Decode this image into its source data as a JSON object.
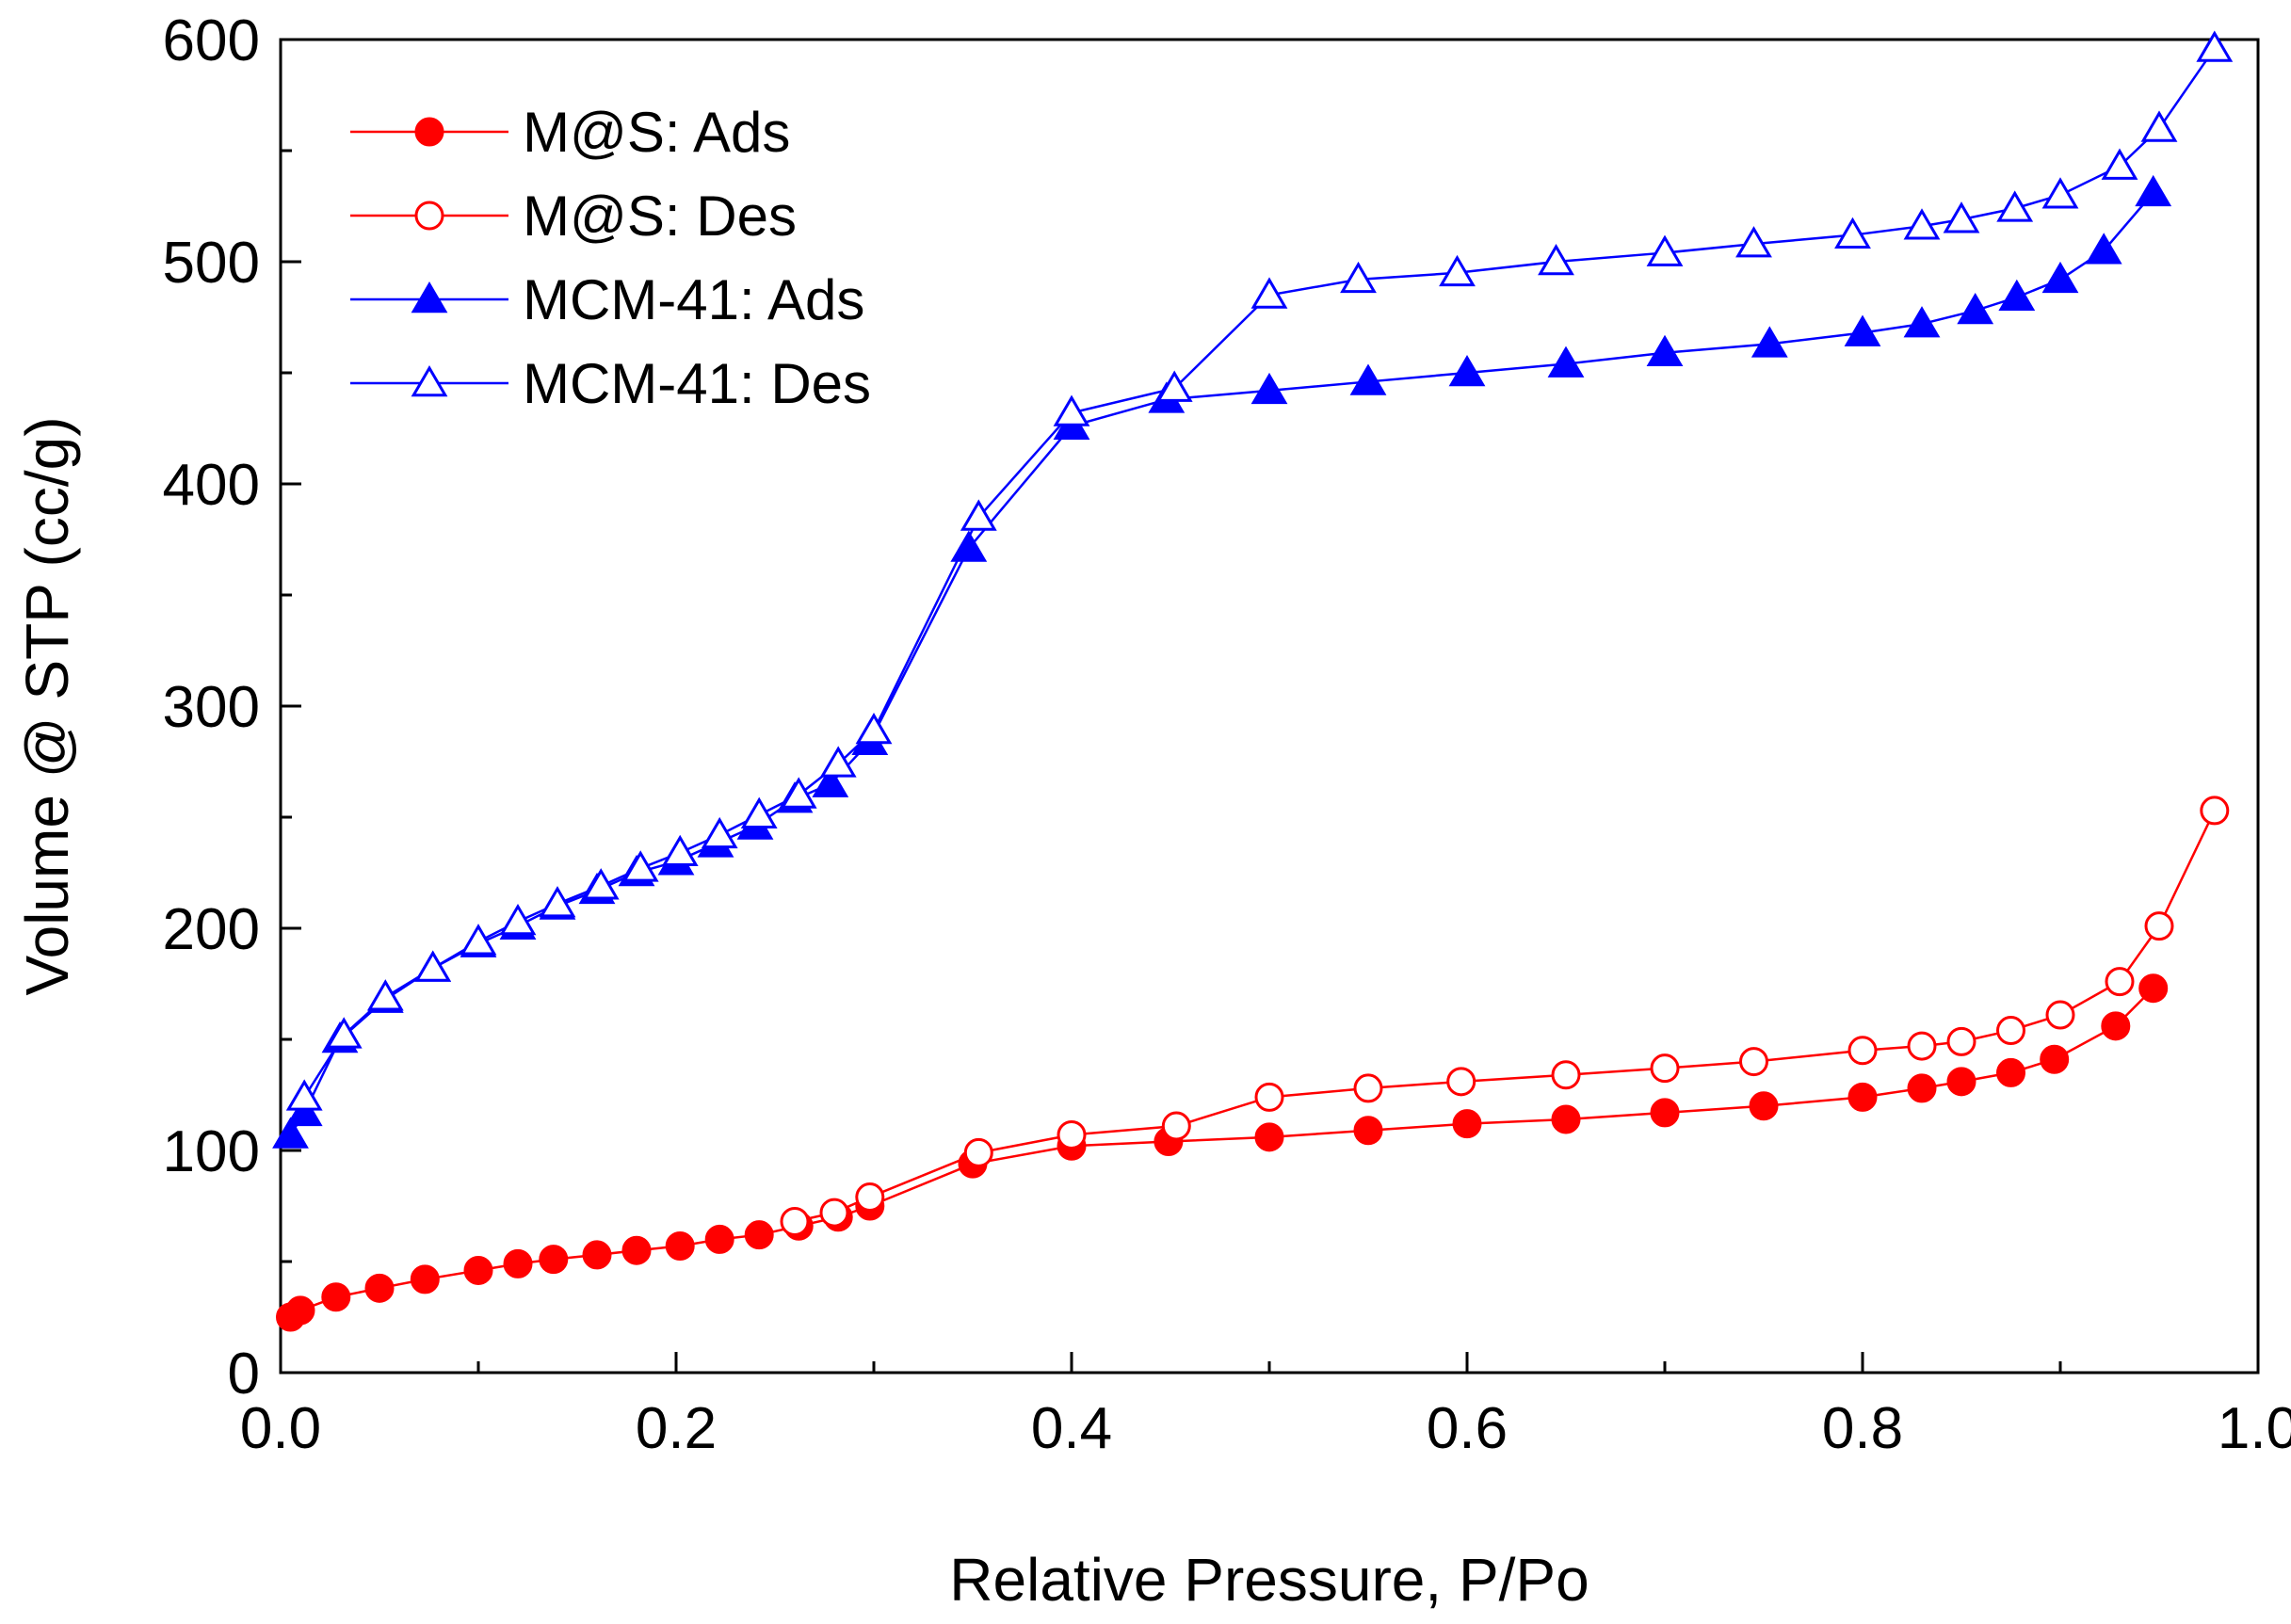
{
  "chart_data": {
    "type": "line",
    "title": "",
    "xlabel": "Relative Pressure, P/Po",
    "ylabel": "Volume @ STP (cc/g)",
    "xlim": [
      0.0,
      1.0
    ],
    "ylim": [
      0,
      600
    ],
    "xticks": [
      0.0,
      0.2,
      0.4,
      0.6,
      0.8,
      1.0
    ],
    "xtick_labels": [
      "0.0",
      "0.2",
      "0.4",
      "0.6",
      "0.8",
      "1.0"
    ],
    "yticks": [
      0,
      100,
      200,
      300,
      400,
      500,
      600
    ],
    "ytick_labels": [
      "0",
      "100",
      "200",
      "300",
      "400",
      "500",
      "600"
    ],
    "grid": false,
    "legend_position": "top-left",
    "series": [
      {
        "name": "M@S: Ads",
        "color": "#ff0000",
        "marker": "circle",
        "filled": true,
        "x": [
          0.005,
          0.01,
          0.028,
          0.05,
          0.073,
          0.1,
          0.12,
          0.138,
          0.16,
          0.18,
          0.202,
          0.222,
          0.242,
          0.262,
          0.282,
          0.298,
          0.35,
          0.4,
          0.449,
          0.5,
          0.55,
          0.6,
          0.65,
          0.7,
          0.75,
          0.8,
          0.83,
          0.85,
          0.875,
          0.897,
          0.928,
          0.947
        ],
        "y": [
          25,
          28,
          34,
          38,
          42,
          46,
          49,
          51,
          53,
          55,
          57,
          60,
          62,
          66,
          70,
          75,
          94,
          102,
          104,
          106,
          109,
          112,
          114,
          117,
          120,
          124,
          128,
          131,
          135,
          141,
          156,
          173
        ]
      },
      {
        "name": "M@S: Des",
        "color": "#ff0000",
        "marker": "circle",
        "filled": false,
        "x": [
          0.26,
          0.28,
          0.298,
          0.353,
          0.4,
          0.453,
          0.5,
          0.55,
          0.597,
          0.65,
          0.7,
          0.745,
          0.8,
          0.83,
          0.85,
          0.875,
          0.9,
          0.93,
          0.95,
          0.978
        ],
        "y": [
          68,
          72,
          79,
          99,
          107,
          111,
          124,
          128,
          131,
          134,
          137,
          140,
          145,
          147,
          149,
          154,
          161,
          176,
          201,
          253
        ]
      },
      {
        "name": "MCM-41: Ads",
        "color": "#0000ff",
        "marker": "triangle",
        "filled": true,
        "x": [
          0.005,
          0.012,
          0.03,
          0.053,
          0.077,
          0.1,
          0.12,
          0.14,
          0.16,
          0.18,
          0.2,
          0.22,
          0.24,
          0.26,
          0.278,
          0.298,
          0.348,
          0.4,
          0.448,
          0.5,
          0.55,
          0.6,
          0.65,
          0.7,
          0.753,
          0.8,
          0.83,
          0.857,
          0.878,
          0.9,
          0.922,
          0.947
        ],
        "y": [
          107,
          117,
          150,
          168,
          182,
          193,
          201,
          210,
          217,
          225,
          230,
          238,
          246,
          258,
          265,
          284,
          371,
          426,
          438,
          442,
          446,
          450,
          454,
          459,
          463,
          468,
          472,
          478,
          484,
          492,
          505,
          531
        ]
      },
      {
        "name": "MCM-41: Des",
        "color": "#0000ff",
        "marker": "triangle",
        "filled": false,
        "x": [
          0.012,
          0.032,
          0.053,
          0.077,
          0.1,
          0.12,
          0.14,
          0.162,
          0.182,
          0.202,
          0.222,
          0.242,
          0.262,
          0.282,
          0.3,
          0.353,
          0.4,
          0.452,
          0.5,
          0.545,
          0.595,
          0.645,
          0.7,
          0.745,
          0.795,
          0.83,
          0.85,
          0.877,
          0.9,
          0.93,
          0.95,
          0.978
        ],
        "y": [
          124,
          152,
          169,
          182,
          194,
          203,
          211,
          219,
          227,
          234,
          242,
          251,
          260,
          274,
          289,
          385,
          432,
          443,
          485,
          492,
          495,
          500,
          504,
          508,
          512,
          516,
          519,
          524,
          530,
          543,
          560,
          596
        ]
      }
    ]
  }
}
